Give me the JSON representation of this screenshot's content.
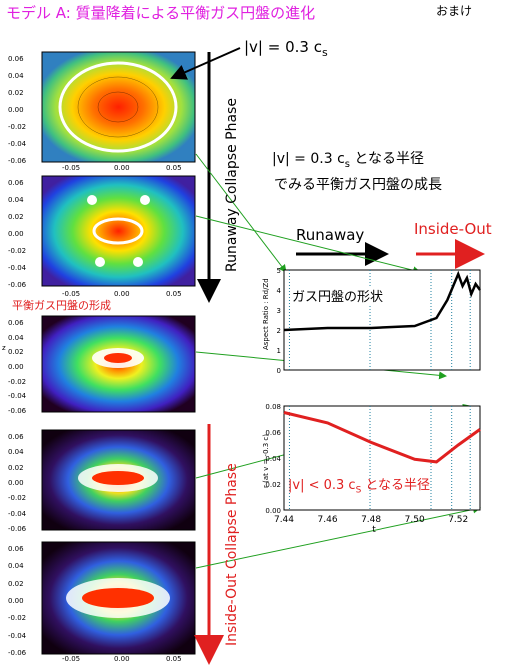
{
  "title": "モデル A: 質量降着による平衡ガス円盤の進化",
  "omake": "おまけ",
  "annotations": {
    "v_label": "|v| = 0.3 c",
    "v_sub": "s",
    "line1_prefix": "|v| = 0.3 c",
    "line1_sub": "s",
    "line1_suffix": " となる半径",
    "line2": "でみる平衡ガス円盤の成長",
    "runaway_phase": "Runaway Collapse Phase",
    "insideout_phase": "Inside-Out Collapse Phase",
    "runaway": "Runaway",
    "insideout": "Inside-Out",
    "disk_formation": "平衡ガス円盤の形成",
    "disk_shape": "ガス円盤の形状",
    "radius_prefix": "|v| < 0.3 c",
    "radius_sub": "S",
    "radius_suffix": " となる半径",
    "z_label": "z"
  },
  "panels": {
    "y_ticks": [
      "0.06",
      "0.04",
      "0.02",
      "0.00",
      "-0.02",
      "-0.04",
      "-0.06"
    ],
    "x_ticks": [
      "-0.05",
      "0.00",
      "0.05"
    ]
  },
  "chart_data": [
    {
      "type": "line",
      "ylabel": "Aspect Ratio : Rd/Zd",
      "ylim": [
        0,
        5
      ],
      "y_ticks": [
        "5",
        "4",
        "3",
        "2",
        "1",
        "0"
      ],
      "series": [
        {
          "x": [
            7.44,
            7.46,
            7.48,
            7.5,
            7.51,
            7.515,
            7.52,
            7.522,
            7.524,
            7.526,
            7.528,
            7.53
          ],
          "values": [
            2.0,
            2.1,
            2.1,
            2.2,
            2.6,
            3.5,
            4.8,
            4.2,
            4.6,
            3.8,
            4.3,
            4.0
          ]
        }
      ],
      "colors": {
        "line": "#000000"
      }
    },
    {
      "type": "line",
      "xlabel": "t",
      "ylabel": "r (at v = -0.3 c)",
      "xlim": [
        7.44,
        7.53
      ],
      "ylim": [
        0.0,
        0.08
      ],
      "x_ticks": [
        "7.44",
        "7.46",
        "7.48",
        "7.50",
        "7.52"
      ],
      "y_ticks": [
        "0.08",
        "0.06",
        "0.04",
        "0.02",
        "0.00"
      ],
      "series": [
        {
          "x": [
            7.44,
            7.46,
            7.48,
            7.5,
            7.51,
            7.52,
            7.53
          ],
          "values": [
            0.075,
            0.067,
            0.052,
            0.039,
            0.037,
            0.05,
            0.062
          ]
        }
      ],
      "colors": {
        "line": "#e02020"
      }
    }
  ],
  "colors": {
    "title": "#e020e0",
    "red": "#e02020",
    "green": "#20a020",
    "black": "#000000"
  }
}
